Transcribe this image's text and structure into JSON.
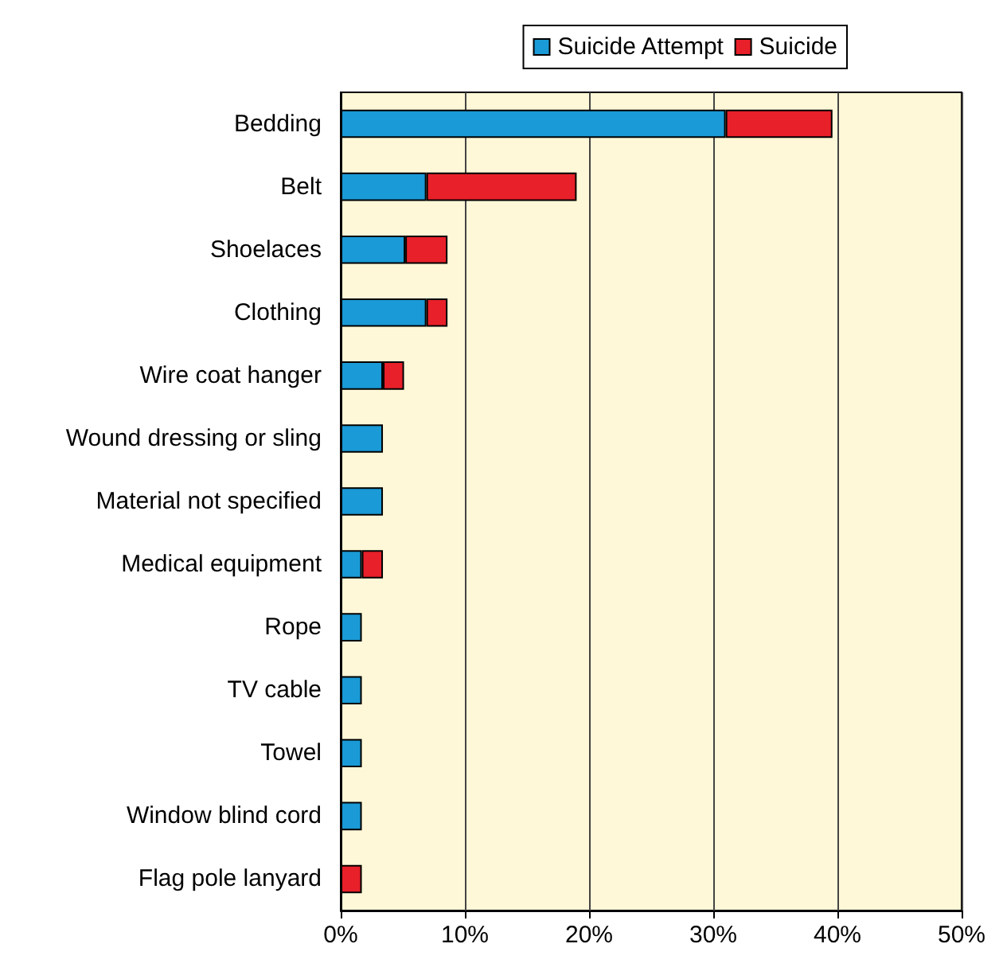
{
  "chart_data": {
    "type": "bar",
    "orientation": "horizontal",
    "stacked": true,
    "categories": [
      "Bedding",
      "Belt",
      "Shoelaces",
      "Clothing",
      "Wire coat hanger",
      "Wound dressing or sling",
      "Material not specified",
      "Medical equipment",
      "Rope",
      "TV cable",
      "Towel",
      "Window blind cord",
      "Flag pole lanyard"
    ],
    "series": [
      {
        "name": "Suicide Attempt",
        "color": "#1a9ad6",
        "values": [
          31.0,
          6.9,
          5.2,
          6.9,
          3.4,
          3.4,
          3.4,
          1.7,
          1.7,
          1.7,
          1.7,
          1.7,
          null
        ]
      },
      {
        "name": "Suicide",
        "color": "#e8202a",
        "values": [
          8.6,
          12.1,
          3.4,
          1.7,
          1.7,
          null,
          null,
          1.7,
          null,
          null,
          null,
          null,
          1.7
        ]
      }
    ],
    "xlim": [
      0,
      50
    ],
    "xticks": [
      {
        "value": 0,
        "label": "0%"
      },
      {
        "value": 10,
        "label": "10%"
      },
      {
        "value": 20,
        "label": "20%"
      },
      {
        "value": 30,
        "label": "30%"
      },
      {
        "value": 40,
        "label": "40%"
      },
      {
        "value": 50,
        "label": "50%"
      }
    ],
    "grid": "x",
    "legend": "top right"
  }
}
